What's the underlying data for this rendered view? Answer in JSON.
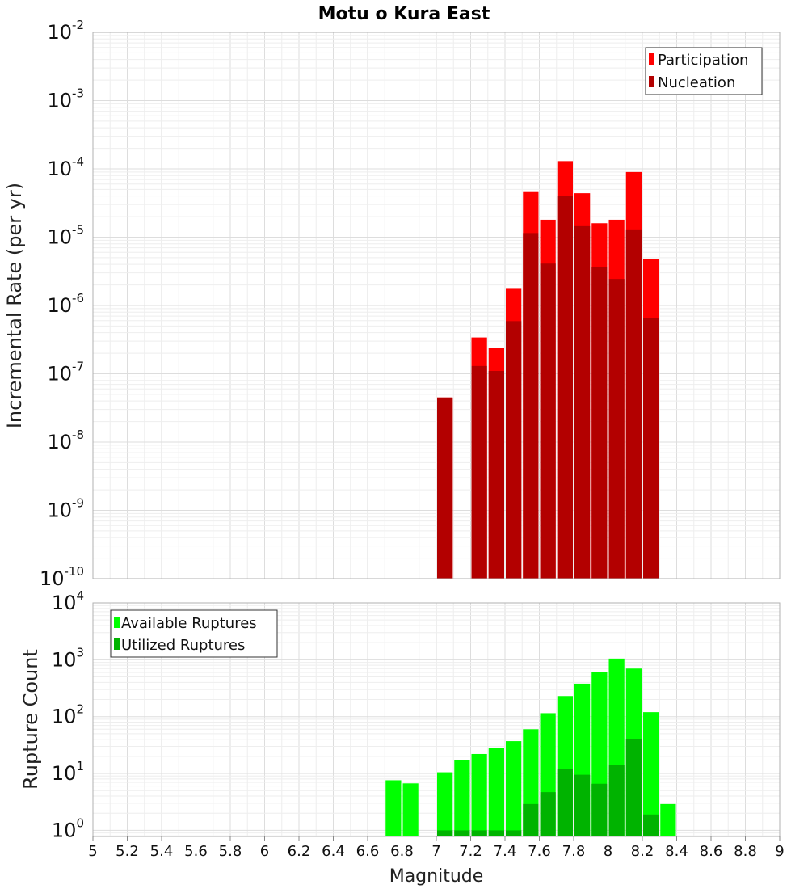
{
  "chart_data": [
    {
      "type": "bar",
      "title": "Motu o Kura East",
      "ylabel": "Incremental Rate (per yr)",
      "xlabel": "",
      "xlim": [
        5,
        9
      ],
      "ylim": [
        1e-10,
        0.01
      ],
      "yscale": "log",
      "y_tick_exponents": [
        -10,
        -9,
        -8,
        -7,
        -6,
        -5,
        -4,
        -3,
        -2
      ],
      "grid": true,
      "legend_placement": "top-right",
      "bin_width": 0.1,
      "x": [
        7.05,
        7.15,
        7.25,
        7.35,
        7.45,
        7.55,
        7.65,
        7.75,
        7.85,
        7.95,
        8.05,
        8.15,
        8.25
      ],
      "series": [
        {
          "name": "Participation",
          "color": "#ff0000",
          "values": [
            4.5e-08,
            0,
            3.4e-07,
            2.4e-07,
            1.8e-06,
            4.7e-05,
            1.8e-05,
            0.00013,
            4.4e-05,
            1.6e-05,
            1.8e-05,
            9e-05,
            4.8e-06
          ]
        },
        {
          "name": "Nucleation",
          "color": "#b30000",
          "values": [
            4.5e-08,
            0,
            1.3e-07,
            1.1e-07,
            5.9e-07,
            1.15e-05,
            4.1e-06,
            4e-05,
            1.45e-05,
            3.7e-06,
            2.45e-06,
            1.3e-05,
            6.5e-07
          ]
        }
      ]
    },
    {
      "type": "bar",
      "ylabel": "Rupture Count",
      "xlabel": "Magnitude",
      "xlim": [
        5,
        9
      ],
      "ylim": [
        0.78,
        10000.0
      ],
      "yscale": "log",
      "y_tick_exponents": [
        0,
        1,
        2,
        3,
        4
      ],
      "x_ticks": [
        "5",
        "5.2",
        "5.4",
        "5.6",
        "5.8",
        "6",
        "6.2",
        "6.4",
        "6.6",
        "6.8",
        "7",
        "7.2",
        "7.4",
        "7.6",
        "7.8",
        "8",
        "8.2",
        "8.4",
        "8.6",
        "8.8",
        "9"
      ],
      "grid": true,
      "legend_placement": "top-left",
      "bin_width": 0.1,
      "x": [
        6.75,
        6.85,
        6.95,
        7.05,
        7.15,
        7.25,
        7.35,
        7.45,
        7.55,
        7.65,
        7.75,
        7.85,
        7.95,
        8.05,
        8.15,
        8.25,
        8.35
      ],
      "series": [
        {
          "name": "Available Ruptures",
          "color": "#00ff00",
          "values": [
            7.6,
            6.7,
            0,
            10.5,
            17,
            22,
            28,
            37,
            60,
            115,
            230,
            380,
            600,
            1050,
            700,
            120,
            2.9
          ]
        },
        {
          "name": "Utilized Ruptures",
          "color": "#00b300",
          "values": [
            0,
            0,
            0,
            1,
            1,
            1,
            1,
            1,
            2.9,
            4.7,
            12,
            9.5,
            6.6,
            14,
            40,
            1.9,
            0
          ]
        }
      ]
    }
  ]
}
